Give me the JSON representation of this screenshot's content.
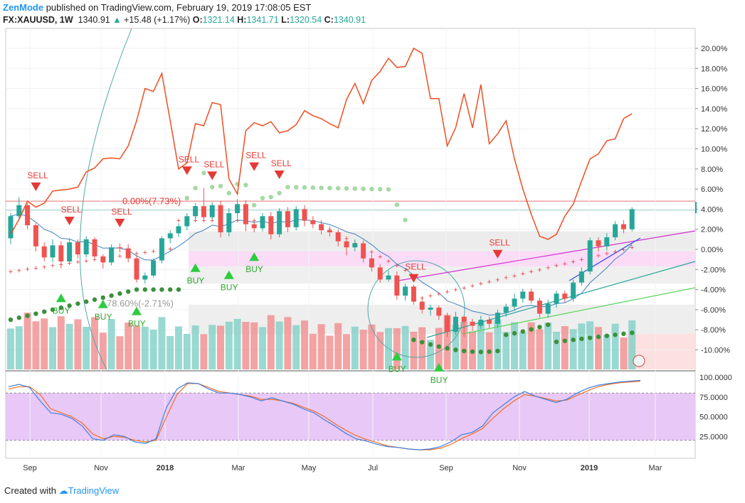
{
  "header": {
    "brand": "ZenMode",
    "published": "published on TradingView.com, February 19, 2019 17:08:05 EST"
  },
  "symbol_bar": {
    "symbol": "FX:XAUUSD, 1W",
    "last": "1340.91",
    "change": "+15.48 (+1.17%)",
    "o_label": "O:",
    "o": "1321.14",
    "h_label": "H:",
    "h": "1341.71",
    "l_label": "L:",
    "l": "1320.54",
    "c_label": "C:",
    "c": "1340.91",
    "up_color": "#26a69a"
  },
  "footer": {
    "created": "Created with",
    "brand": "TradingView"
  },
  "chart_data": [
    {
      "type": "line",
      "title": "FX:XAUUSD, 1W",
      "y_axis": {
        "unit": "percent",
        "ticks": [
          20,
          18,
          16,
          14,
          12,
          10,
          8,
          6,
          4,
          2,
          0,
          -2,
          -4,
          -6,
          -8,
          -10
        ],
        "tick_labels": [
          "20.00%",
          "18.00%",
          "16.00%",
          "14.00%",
          "12.00%",
          "10.00%",
          "8.00%",
          "6.00%",
          "4.00%",
          "2.00%",
          "0.00%",
          "-2.00%",
          "-4.00%",
          "-6.00%",
          "-8.00%",
          "-10.00%"
        ]
      },
      "x_axis": {
        "tick_labels": [
          "Sep",
          "Nov",
          "2018",
          "Mar",
          "May",
          "Jul",
          "Sep",
          "Nov",
          "2019",
          "Mar"
        ],
        "bold": [
          "2018",
          "2019"
        ]
      },
      "weeks": 75,
      "candles": [
        [
          1.1,
          3.3,
          0.5,
          3.6
        ],
        [
          3.3,
          4.4,
          2.9,
          5.2
        ],
        [
          4.4,
          2.4,
          2.0,
          4.6
        ],
        [
          2.4,
          0.3,
          -0.2,
          2.6
        ],
        [
          0.3,
          -0.8,
          -1.2,
          0.7
        ],
        [
          -0.8,
          0.4,
          -1.3,
          1.0
        ],
        [
          0.4,
          -1.2,
          -1.9,
          0.8
        ],
        [
          -1.2,
          0.7,
          -1.5,
          1.1
        ],
        [
          0.7,
          -0.5,
          -0.9,
          1.0
        ],
        [
          -0.5,
          1.0,
          -0.8,
          1.3
        ],
        [
          1.0,
          -0.7,
          -1.2,
          1.2
        ],
        [
          -0.7,
          -1.3,
          -1.9,
          -0.5
        ],
        [
          -1.3,
          0.2,
          -1.6,
          0.5
        ],
        [
          0.2,
          0.1,
          -0.3,
          0.6
        ],
        [
          0.1,
          -0.9,
          -1.3,
          0.5
        ],
        [
          -0.9,
          -3.0,
          -3.3,
          -0.6
        ],
        [
          -3.0,
          -2.6,
          -3.4,
          -2.3
        ],
        [
          -2.6,
          -1.1,
          -2.8,
          -0.9
        ],
        [
          -1.1,
          1.1,
          -1.4,
          1.3
        ],
        [
          1.1,
          1.6,
          0.6,
          1.9
        ],
        [
          1.6,
          2.3,
          1.2,
          2.6
        ],
        [
          2.3,
          3.3,
          1.9,
          3.6
        ],
        [
          3.3,
          4.3,
          2.9,
          4.6
        ],
        [
          4.3,
          3.2,
          2.8,
          6.1
        ],
        [
          3.2,
          4.4,
          2.9,
          4.7
        ],
        [
          4.4,
          1.7,
          1.2,
          4.8
        ],
        [
          1.7,
          3.6,
          1.3,
          4.1
        ],
        [
          3.6,
          4.5,
          3.1,
          5.0
        ],
        [
          4.5,
          2.5,
          1.8,
          4.9
        ],
        [
          2.5,
          2.1,
          1.7,
          2.9
        ],
        [
          2.1,
          3.3,
          1.8,
          3.6
        ],
        [
          3.3,
          1.5,
          1.0,
          3.7
        ],
        [
          1.5,
          3.8,
          1.2,
          4.1
        ],
        [
          3.8,
          2.2,
          1.7,
          4.2
        ],
        [
          2.2,
          4.0,
          1.9,
          4.3
        ],
        [
          4.0,
          2.9,
          2.3,
          4.4
        ],
        [
          2.9,
          2.5,
          2.1,
          3.3
        ],
        [
          2.5,
          1.9,
          1.5,
          2.9
        ],
        [
          1.9,
          1.7,
          1.3,
          2.3
        ],
        [
          1.7,
          0.8,
          0.3,
          2.0
        ],
        [
          0.8,
          0.2,
          -0.6,
          1.3
        ],
        [
          0.2,
          0.6,
          -0.2,
          1.0
        ],
        [
          0.6,
          -0.9,
          -1.3,
          0.9
        ],
        [
          -0.9,
          -1.8,
          -2.2,
          -0.5
        ],
        [
          -1.8,
          -3.0,
          -3.3,
          -1.5
        ],
        [
          -3.0,
          -2.6,
          -3.2,
          -2.1
        ],
        [
          -2.6,
          -4.6,
          -5.0,
          -2.2
        ],
        [
          -4.6,
          -3.7,
          -5.1,
          -3.4
        ],
        [
          -3.7,
          -5.2,
          -5.5,
          -3.5
        ],
        [
          -5.2,
          -6.0,
          -6.4,
          -4.9
        ],
        [
          -6.0,
          -5.8,
          -6.6,
          -5.5
        ],
        [
          -5.8,
          -6.6,
          -7.0,
          -5.6
        ],
        [
          -6.6,
          -8.2,
          -8.7,
          -6.3
        ],
        [
          -8.2,
          -6.7,
          -8.5,
          -6.2
        ],
        [
          -6.7,
          -7.2,
          -8.7,
          -6.6
        ],
        [
          -7.2,
          -7.6,
          -8.1,
          -6.9
        ],
        [
          -7.6,
          -7.0,
          -7.9,
          -6.6
        ],
        [
          -7.0,
          -7.4,
          -7.8,
          -6.7
        ],
        [
          -7.4,
          -6.3,
          -7.8,
          -6.0
        ],
        [
          -6.3,
          -5.7,
          -6.7,
          -5.4
        ],
        [
          -5.7,
          -4.9,
          -6.1,
          -4.4
        ],
        [
          -4.9,
          -4.2,
          -5.3,
          -3.9
        ],
        [
          -4.2,
          -5.1,
          -5.4,
          -3.9
        ],
        [
          -5.1,
          -6.4,
          -6.8,
          -4.8
        ],
        [
          -6.4,
          -5.4,
          -6.8,
          -5.0
        ],
        [
          -5.4,
          -4.4,
          -5.8,
          -4.1
        ],
        [
          -4.4,
          -4.9,
          -5.3,
          -4.1
        ],
        [
          -4.9,
          -3.3,
          -5.2,
          -3.0
        ],
        [
          -3.3,
          -2.2,
          -3.6,
          -1.8
        ],
        [
          -2.2,
          0.9,
          -2.5,
          1.2
        ],
        [
          0.9,
          0.3,
          -0.2,
          1.2
        ],
        [
          0.3,
          1.2,
          -0.1,
          1.6
        ],
        [
          1.2,
          2.5,
          0.9,
          2.8
        ],
        [
          2.5,
          2.0,
          1.6,
          2.9
        ],
        [
          2.0,
          4.0,
          1.8,
          4.2
        ]
      ],
      "series": [
        {
          "name": "",
          "color": "#ef4d23",
          "values": [
            1.5,
            3.0,
            4.8,
            4.2,
            4.6,
            5.8,
            5.9,
            6.0,
            6.2,
            7.7,
            8.1,
            9.0,
            9.1,
            9.0,
            10.3,
            12.8,
            16.0,
            15.7,
            17.5,
            12.8,
            8.0,
            8.6,
            12.5,
            12.3,
            14.6,
            14.4,
            7.0,
            5.5,
            11.8,
            12.6,
            12.3,
            12.7,
            11.6,
            11.8,
            12.4,
            13.8,
            13.3,
            13.0,
            12.5,
            12.1,
            14.9,
            16.5,
            14.5,
            16.8,
            17.7,
            19.0,
            18.1,
            18.2,
            20.0,
            19.5,
            15.0,
            15.0,
            10.3,
            12.1,
            15.5,
            12.1,
            16.4,
            10.5,
            11.5,
            12.8,
            9.0,
            6.0,
            3.5,
            1.3,
            1.0,
            1.5,
            3.3,
            4.5,
            6.8,
            9.0,
            9.5,
            10.8,
            11.0,
            13.0,
            13.5
          ]
        }
      ],
      "markers": [
        {
          "label": "SELL",
          "week": 3,
          "y": 5.8
        },
        {
          "label": "SELL",
          "week": 7,
          "y": 2.4
        },
        {
          "label": "SELL",
          "week": 13,
          "y": 2.2
        },
        {
          "label": "SELL",
          "week": 21,
          "y": 7.4
        },
        {
          "label": "SELL",
          "week": 24,
          "y": 6.9
        },
        {
          "label": "SELL",
          "week": 29,
          "y": 7.8
        },
        {
          "label": "SELL",
          "week": 32,
          "y": 7.0
        },
        {
          "label": "SELL",
          "week": 48,
          "y": -3.3
        },
        {
          "label": "SELL",
          "week": 58,
          "y": -0.9
        },
        {
          "label": "BUY",
          "week": 6,
          "y": -4.4
        },
        {
          "label": "BUY",
          "week": 11,
          "y": -5.0
        },
        {
          "label": "BUY",
          "week": 15,
          "y": -5.7
        },
        {
          "label": "BUY",
          "week": 22,
          "y": -1.4
        },
        {
          "label": "BUY",
          "week": 26,
          "y": -2.1
        },
        {
          "label": "BUY",
          "week": 29,
          "y": -0.3
        },
        {
          "label": "BUY",
          "week": 46,
          "y": -10.2
        },
        {
          "label": "BUY",
          "week": 51,
          "y": -11.3
        }
      ],
      "fib_labels": [
        "0.00%(7.73%)",
        "78.60%(-2.71%)"
      ],
      "oscillator": {
        "ticks": [
          100,
          75,
          50,
          25
        ],
        "tick_labels": [
          "100.0000",
          "75.0000",
          "50.0000",
          "25.0000"
        ],
        "band": [
          20,
          80
        ],
        "k": [
          88,
          91,
          87,
          70,
          55,
          53,
          48,
          38,
          22,
          20,
          27,
          25,
          18,
          16,
          22,
          62,
          85,
          93,
          92,
          85,
          80,
          80,
          78,
          75,
          70,
          74,
          70,
          66,
          60,
          55,
          46,
          38,
          29,
          22,
          19,
          15,
          12,
          11,
          9,
          8,
          9,
          12,
          18,
          27,
          30,
          38,
          55,
          65,
          75,
          82,
          76,
          72,
          68,
          72,
          80,
          86,
          90,
          92,
          94,
          95,
          96
        ],
        "d": [
          85,
          88,
          88,
          78,
          60,
          55,
          50,
          42,
          28,
          22,
          25,
          24,
          20,
          18,
          20,
          50,
          78,
          92,
          92,
          87,
          82,
          80,
          78,
          76,
          72,
          72,
          70,
          67,
          62,
          57,
          50,
          41,
          33,
          26,
          21,
          17,
          13,
          11,
          9,
          8,
          8,
          10,
          15,
          22,
          28,
          35,
          48,
          60,
          70,
          78,
          76,
          73,
          70,
          71,
          77,
          83,
          88,
          91,
          93,
          94,
          95
        ]
      }
    }
  ]
}
